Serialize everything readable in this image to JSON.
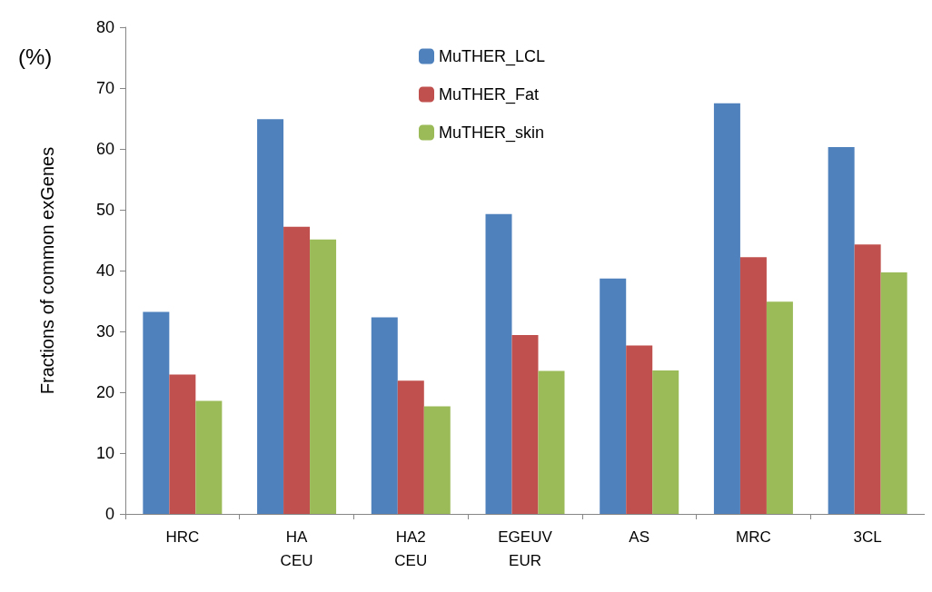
{
  "chart_data": {
    "type": "bar",
    "ylabel": "Fractions of common exGenes",
    "annotations": [
      "(%)"
    ],
    "categories": [
      "HRC",
      "HA\nCEU",
      "HA2\nCEU",
      "EGEUV\nEUR",
      "AS",
      "MRC",
      "3CL"
    ],
    "series": [
      {
        "name": "MuTHER_LCL",
        "color": "#4f81bd",
        "values": [
          33.2,
          64.9,
          32.3,
          49.3,
          38.7,
          67.5,
          60.3
        ]
      },
      {
        "name": "MuTHER_Fat",
        "color": "#c0504d",
        "values": [
          22.9,
          47.2,
          21.9,
          29.4,
          27.7,
          42.2,
          44.3
        ]
      },
      {
        "name": "MuTHER_skin",
        "color": "#9bbb59",
        "values": [
          18.6,
          45.1,
          17.7,
          23.5,
          23.6,
          34.9,
          39.7
        ]
      }
    ],
    "ylim": [
      0,
      80
    ],
    "yticks": [
      0,
      10,
      20,
      30,
      40,
      50,
      60,
      70,
      80
    ],
    "grid": false,
    "legend": "top"
  }
}
